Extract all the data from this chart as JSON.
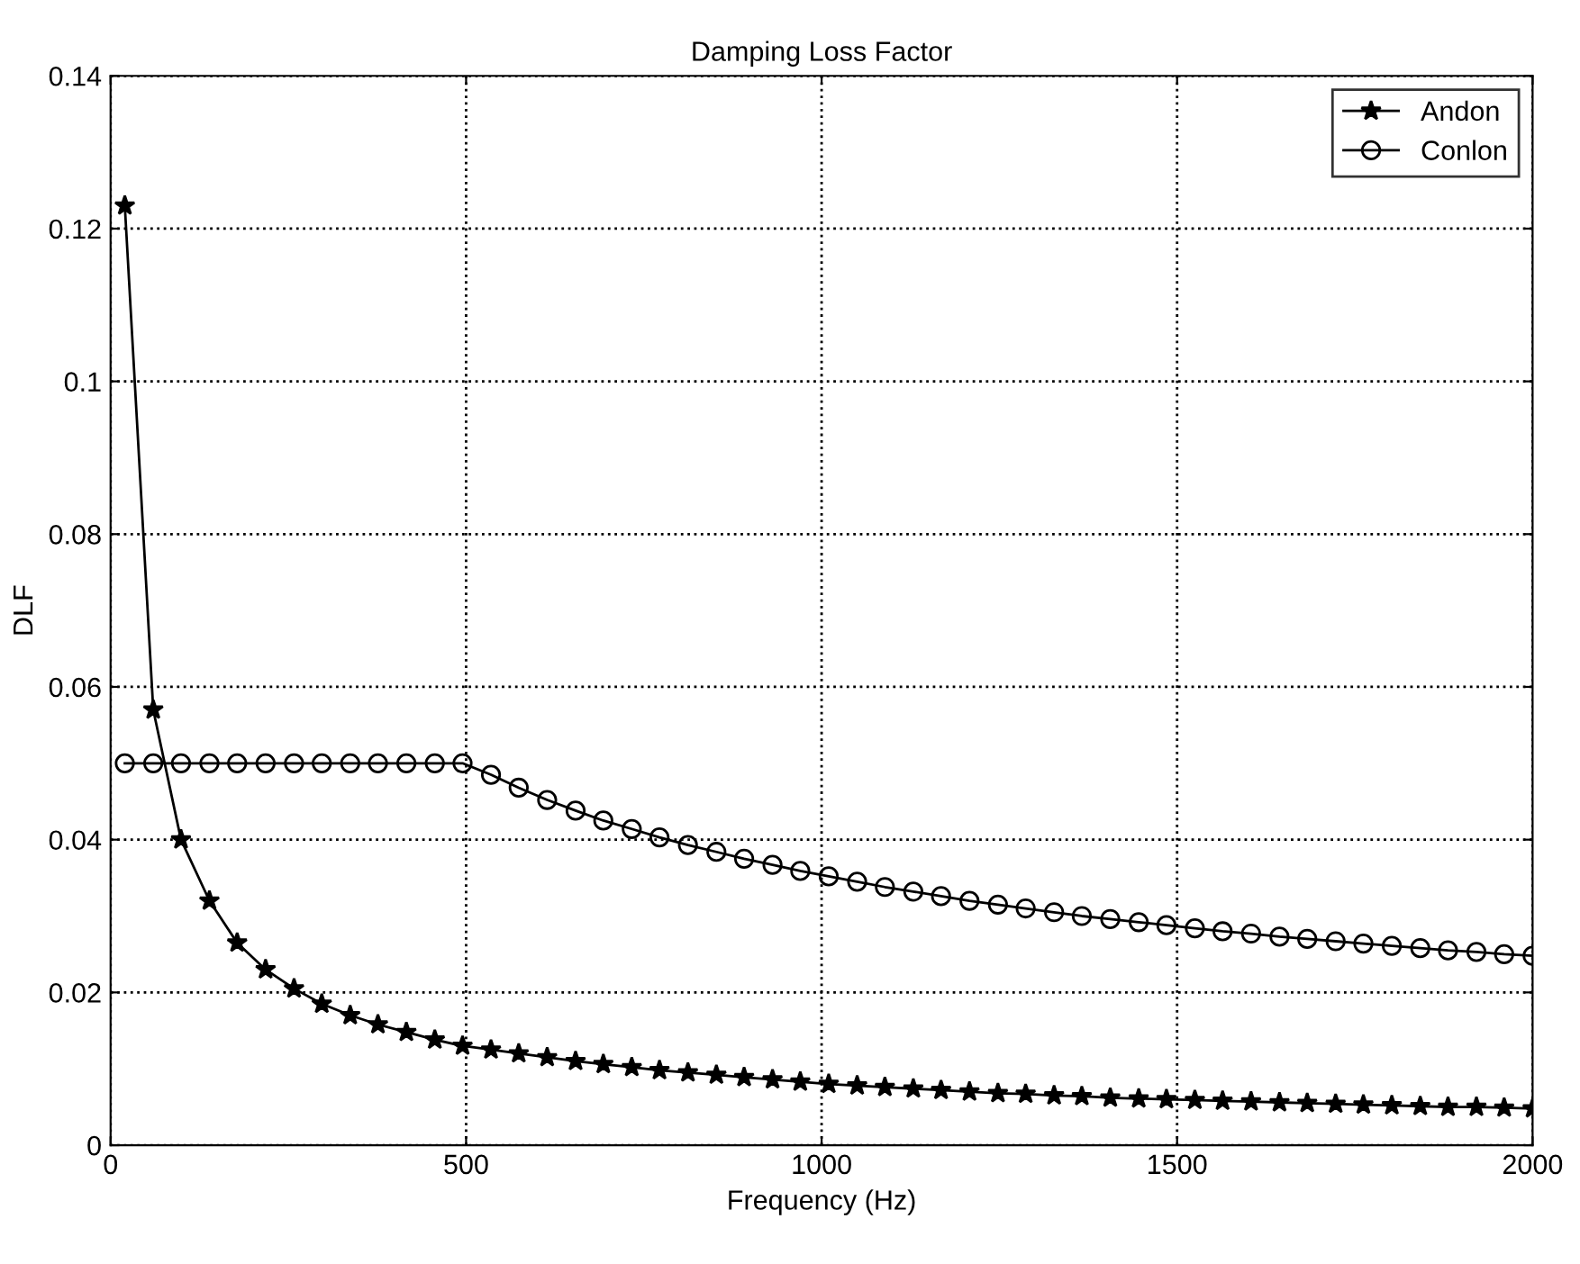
{
  "chart_data": {
    "type": "line",
    "title": "Damping Loss Factor",
    "xlabel": "Frequency (Hz)",
    "ylabel": "DLF",
    "x": [
      20,
      60,
      99,
      139,
      178,
      218,
      258,
      297,
      337,
      376,
      416,
      456,
      495,
      535,
      574,
      614,
      654,
      693,
      733,
      772,
      812,
      852,
      891,
      931,
      970,
      1010,
      1050,
      1089,
      1129,
      1168,
      1208,
      1248,
      1287,
      1327,
      1366,
      1406,
      1446,
      1485,
      1525,
      1564,
      1604,
      1644,
      1683,
      1723,
      1762,
      1802,
      1842,
      1881,
      1921,
      1960,
      2000
    ],
    "series": [
      {
        "name": "Andon",
        "color": "#000000",
        "marker": "star",
        "values": [
          0.123,
          0.057,
          0.04,
          0.032,
          0.0265,
          0.023,
          0.0205,
          0.0185,
          0.017,
          0.0158,
          0.0148,
          0.0138,
          0.013,
          0.0125,
          0.012,
          0.0115,
          0.011,
          0.0106,
          0.0102,
          0.0098,
          0.0095,
          0.0092,
          0.0089,
          0.0086,
          0.0083,
          0.008,
          0.0078,
          0.0076,
          0.0074,
          0.0072,
          0.007,
          0.0068,
          0.0067,
          0.0065,
          0.0064,
          0.0062,
          0.0061,
          0.006,
          0.0059,
          0.0058,
          0.0057,
          0.0056,
          0.0055,
          0.0054,
          0.0053,
          0.0052,
          0.0051,
          0.005,
          0.005,
          0.0049,
          0.0048
        ]
      },
      {
        "name": "Conlon",
        "color": "#000000",
        "marker": "circle",
        "values": [
          0.05,
          0.05,
          0.05,
          0.05,
          0.05,
          0.05,
          0.05,
          0.05,
          0.05,
          0.05,
          0.05,
          0.05,
          0.05,
          0.0485,
          0.0468,
          0.0452,
          0.0438,
          0.0425,
          0.0414,
          0.0403,
          0.0393,
          0.0384,
          0.0375,
          0.0367,
          0.0359,
          0.0352,
          0.0345,
          0.0338,
          0.0332,
          0.0326,
          0.032,
          0.0315,
          0.031,
          0.0305,
          0.03,
          0.0296,
          0.0292,
          0.0288,
          0.0284,
          0.028,
          0.0277,
          0.0273,
          0.027,
          0.0267,
          0.0264,
          0.0261,
          0.0258,
          0.0255,
          0.0253,
          0.025,
          0.0248
        ]
      }
    ],
    "xlim": [
      0,
      2000
    ],
    "xticks": [
      0,
      500,
      1000,
      1500,
      2000
    ],
    "ylim": [
      0,
      0.14
    ],
    "yticks": [
      0,
      0.02,
      0.04,
      0.06,
      0.08,
      0.1,
      0.12,
      0.14
    ],
    "grid": true,
    "legend": "top right",
    "line_style": "solid"
  }
}
